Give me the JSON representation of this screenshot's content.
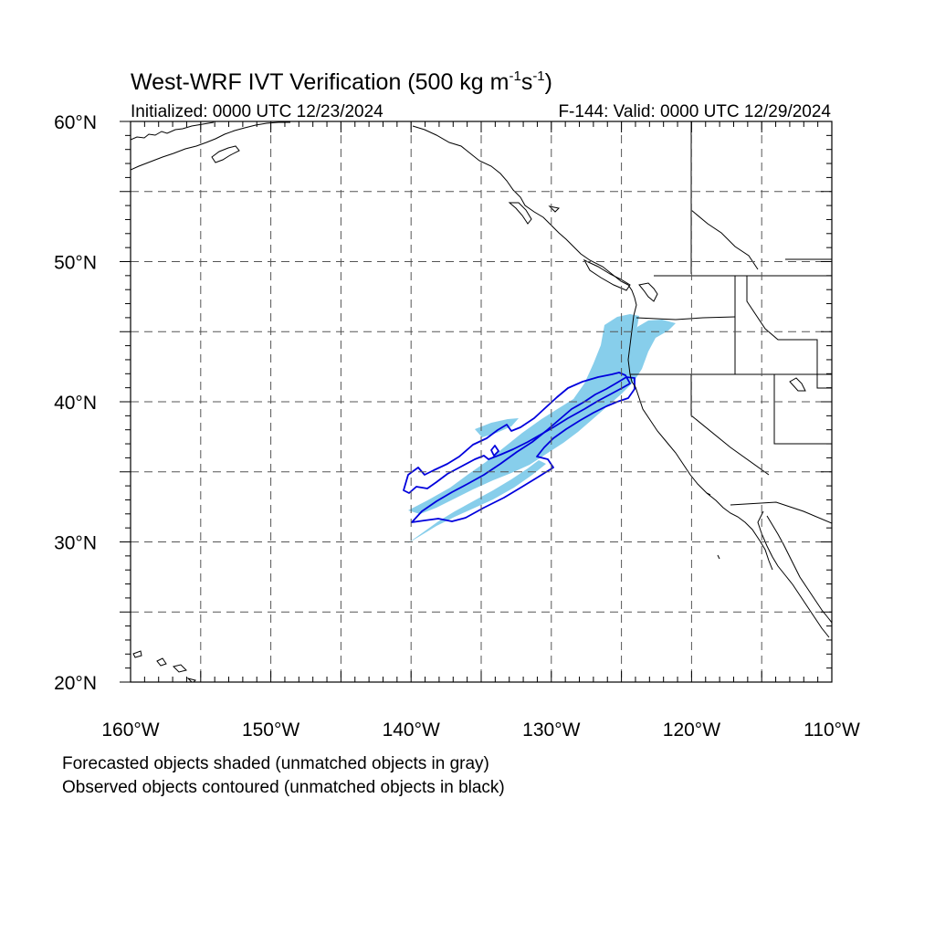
{
  "title": {
    "main": "West-WRF IVT Verification (500 kg m",
    "sup1": "-1",
    "mid": "s",
    "sup2": "-1",
    "end": ")"
  },
  "initialized": "Initialized: 0000 UTC 12/23/2024",
  "valid": "F-144: Valid: 0000 UTC 12/29/2024",
  "lat_labels": [
    {
      "lat": 60,
      "label": "60°N"
    },
    {
      "lat": 50,
      "label": "50°N"
    },
    {
      "lat": 40,
      "label": "40°N"
    },
    {
      "lat": 30,
      "label": "30°N"
    },
    {
      "lat": 20,
      "label": "20°N"
    }
  ],
  "lon_labels": [
    {
      "lon": -160,
      "label": "160°W"
    },
    {
      "lon": -150,
      "label": "150°W"
    },
    {
      "lon": -140,
      "label": "140°W"
    },
    {
      "lon": -130,
      "label": "130°W"
    },
    {
      "lon": -120,
      "label": "120°W"
    },
    {
      "lon": -110,
      "label": "110°W"
    }
  ],
  "extent": {
    "lon": [
      -160,
      -110
    ],
    "lat": [
      20,
      60
    ]
  },
  "grid_spacing_deg": 5,
  "colors": {
    "forecast_fill": "#87ceeb",
    "observed_contour": "#0000dd",
    "coast": "#000000"
  },
  "notes": {
    "line1": "Forecasted objects shaded (unmatched objects in gray)",
    "line2": "Observed objects contoured (unmatched objects in black)"
  }
}
